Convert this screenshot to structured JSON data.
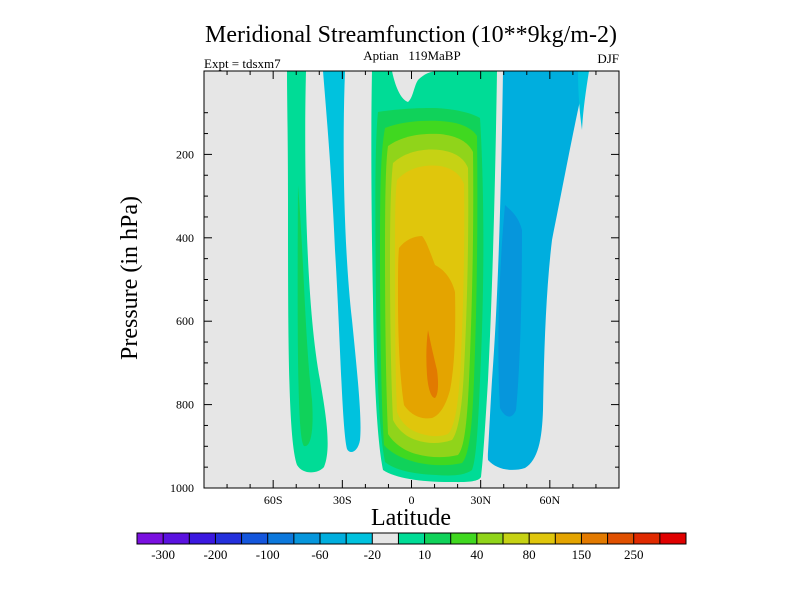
{
  "chart_data": {
    "type": "heatmap",
    "title": "Meridional Streamfunction (10**9kg/m-2)",
    "subtitle": "Aptian   119MaBP",
    "experiment_label": "Expt = tdsxm7",
    "season_label": "DJF",
    "xlabel": "Latitude",
    "ylabel": "Pressure (in hPa)",
    "xlim": [
      -90,
      90
    ],
    "ylim": [
      1000,
      0
    ],
    "x_ticks": [
      {
        "value": -60,
        "label": "60S"
      },
      {
        "value": -30,
        "label": "30S"
      },
      {
        "value": 0,
        "label": "0"
      },
      {
        "value": 30,
        "label": "30N"
      },
      {
        "value": 60,
        "label": "60N"
      }
    ],
    "y_ticks": [
      {
        "value": 200,
        "label": "200"
      },
      {
        "value": 400,
        "label": "400"
      },
      {
        "value": 600,
        "label": "600"
      },
      {
        "value": 800,
        "label": "800"
      },
      {
        "value": 1000,
        "label": "1000"
      }
    ],
    "contour_levels": [
      -300,
      -250,
      -200,
      -150,
      -100,
      -80,
      -60,
      -40,
      -20,
      -10,
      10,
      20,
      40,
      60,
      80,
      100,
      150,
      200,
      250,
      300
    ],
    "colorbar_labels": [
      "-300",
      "-200",
      "-100",
      "-60",
      "-20",
      "10",
      "40",
      "80",
      "150",
      "250"
    ],
    "colorbar_colors": [
      "#7a10e0",
      "#5a12e0",
      "#3b18e0",
      "#2430dc",
      "#1456dc",
      "#0c78dc",
      "#0696dc",
      "#00aede",
      "#00c2de",
      "#e6e6e6",
      "#00dc96",
      "#10d25a",
      "#40d820",
      "#90d41a",
      "#c6d214",
      "#e0c60c",
      "#e4a400",
      "#e27a00",
      "#e05000",
      "#e02a00",
      "#e00000"
    ],
    "background_color": "#e6e6e6"
  }
}
